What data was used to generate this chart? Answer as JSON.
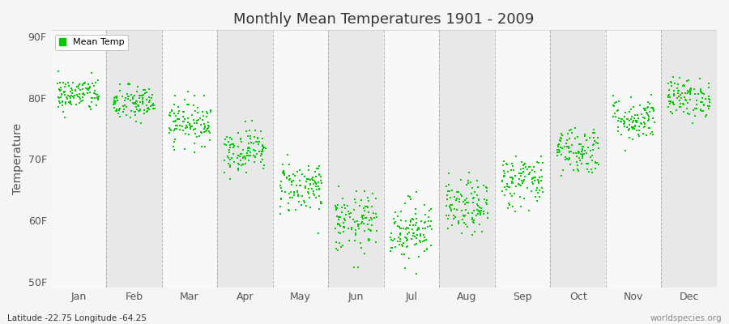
{
  "title": "Monthly Mean Temperatures 1901 - 2009",
  "ylabel": "Temperature",
  "ytick_labels": [
    "50F",
    "60F",
    "70F",
    "80F",
    "90F"
  ],
  "ytick_values": [
    50,
    60,
    70,
    80,
    90
  ],
  "ylim": [
    49,
    91
  ],
  "months": [
    "Jan",
    "Feb",
    "Mar",
    "Apr",
    "May",
    "Jun",
    "Jul",
    "Aug",
    "Sep",
    "Oct",
    "Nov",
    "Dec"
  ],
  "dot_color": "#00CC00",
  "bg_color": "#f5f5f5",
  "plot_bg_color": "#f0f0f0",
  "band_color_light": "#f8f8f8",
  "band_color_dark": "#e8e8e8",
  "dashed_line_color": "#888888",
  "legend_label": "Mean Temp",
  "footnote_left": "Latitude -22.75 Longitude -64.25",
  "footnote_right": "worldspecies.org",
  "n_years": 109,
  "mean_temps_F": [
    80.5,
    79.0,
    76.0,
    71.5,
    65.5,
    59.5,
    58.5,
    62.0,
    66.5,
    71.5,
    76.5,
    80.0
  ],
  "std_temps_F": [
    1.4,
    1.5,
    1.8,
    1.8,
    2.2,
    2.5,
    2.5,
    2.2,
    2.2,
    2.0,
    1.8,
    1.6
  ],
  "seed": 42,
  "dot_size": 3,
  "jitter": 0.38
}
